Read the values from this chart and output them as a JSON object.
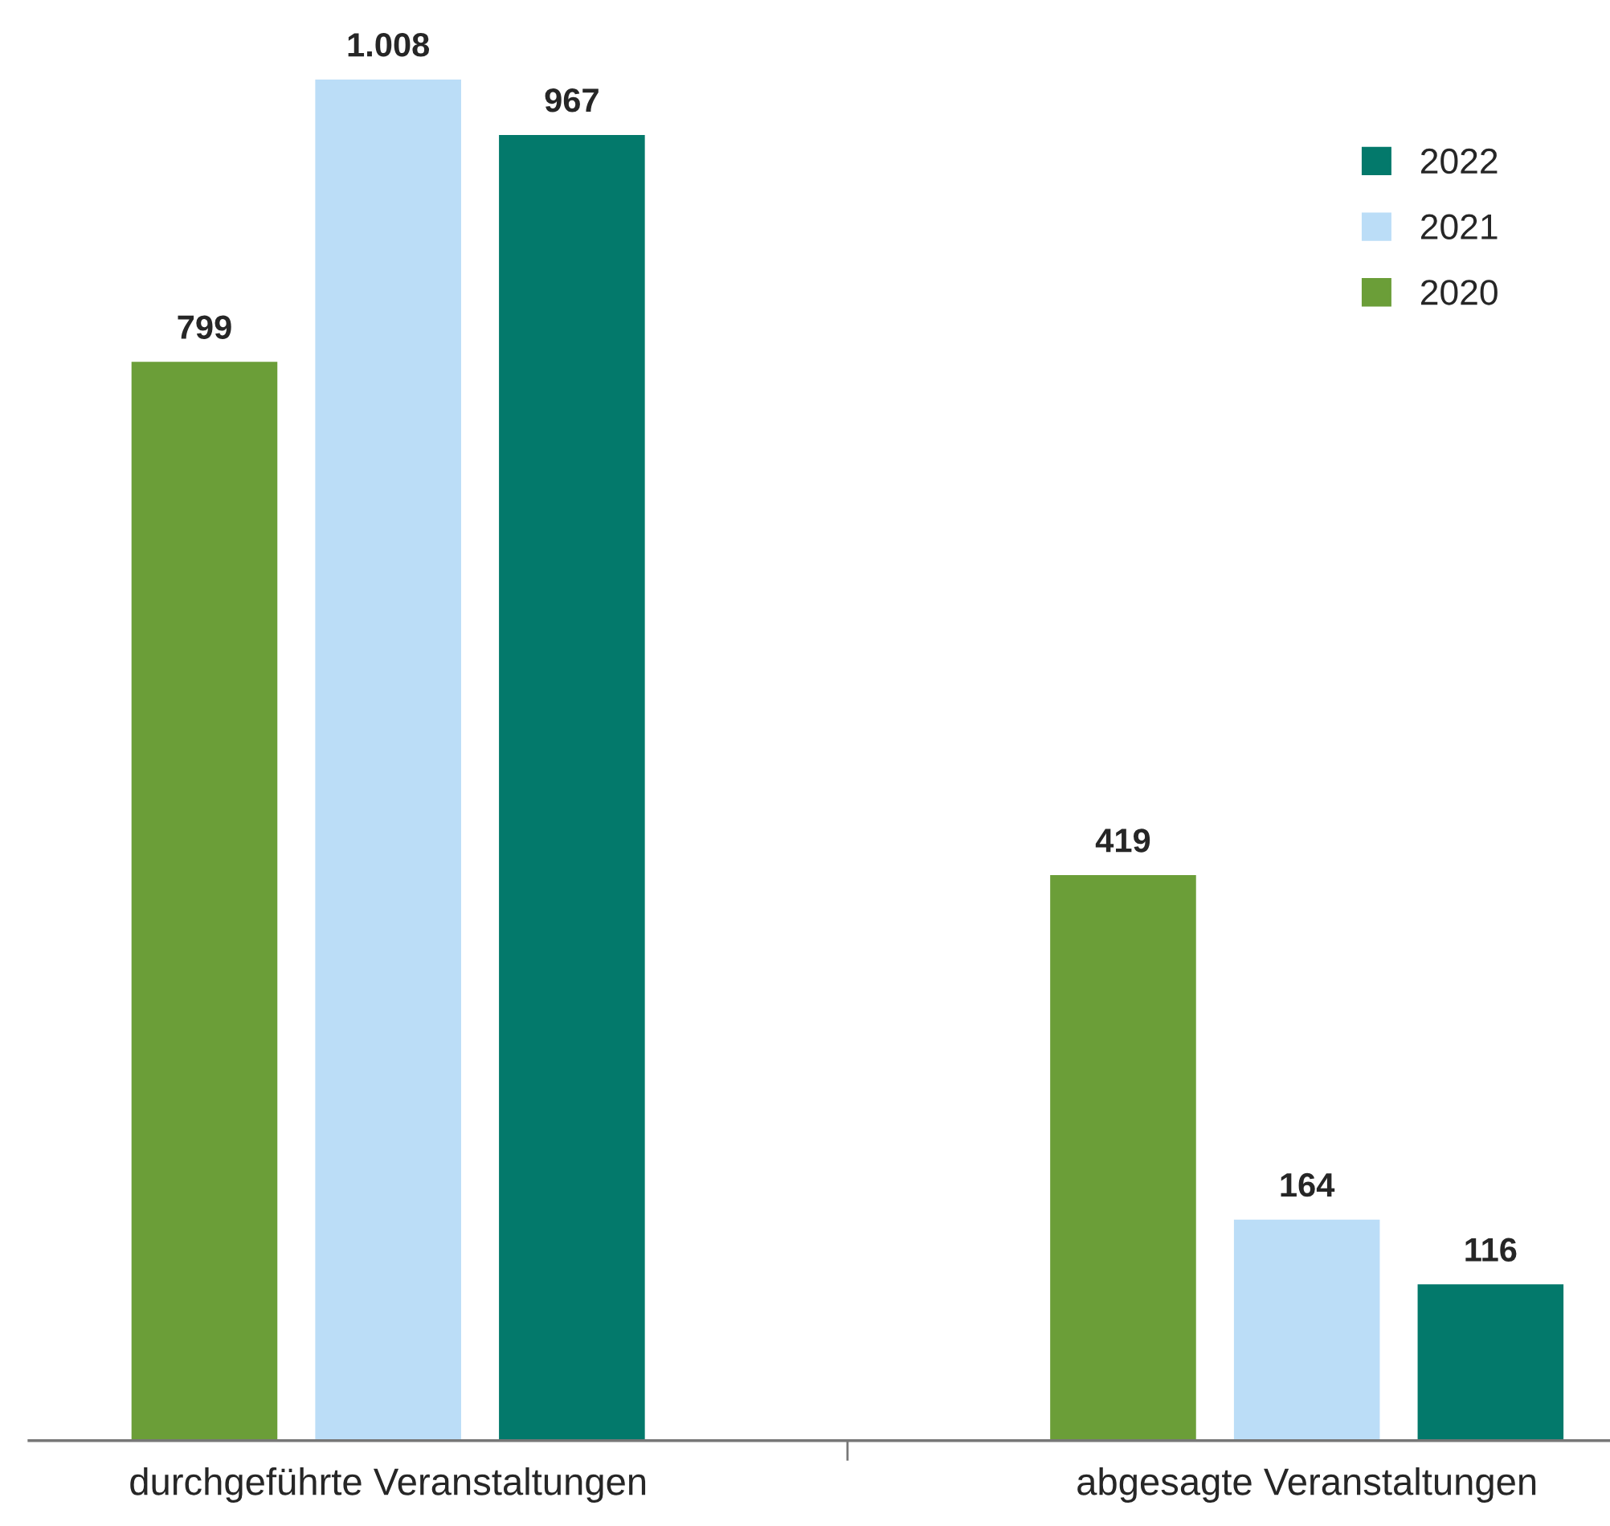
{
  "chart_data": {
    "type": "bar",
    "categories": [
      "durchgeführte Veranstaltungen",
      "abgesagte Veranstaltungen"
    ],
    "series": [
      {
        "name": "2020",
        "color": "#6b9e38",
        "values": [
          799,
          419
        ],
        "value_labels": [
          "799",
          "419"
        ]
      },
      {
        "name": "2021",
        "color": "#bbddf7",
        "values": [
          1008,
          164
        ],
        "value_labels": [
          "1.008",
          "164"
        ]
      },
      {
        "name": "2022",
        "color": "#03796b",
        "values": [
          967,
          116
        ],
        "value_labels": [
          "967",
          "116"
        ]
      }
    ],
    "grid": false,
    "legend": "top right"
  }
}
